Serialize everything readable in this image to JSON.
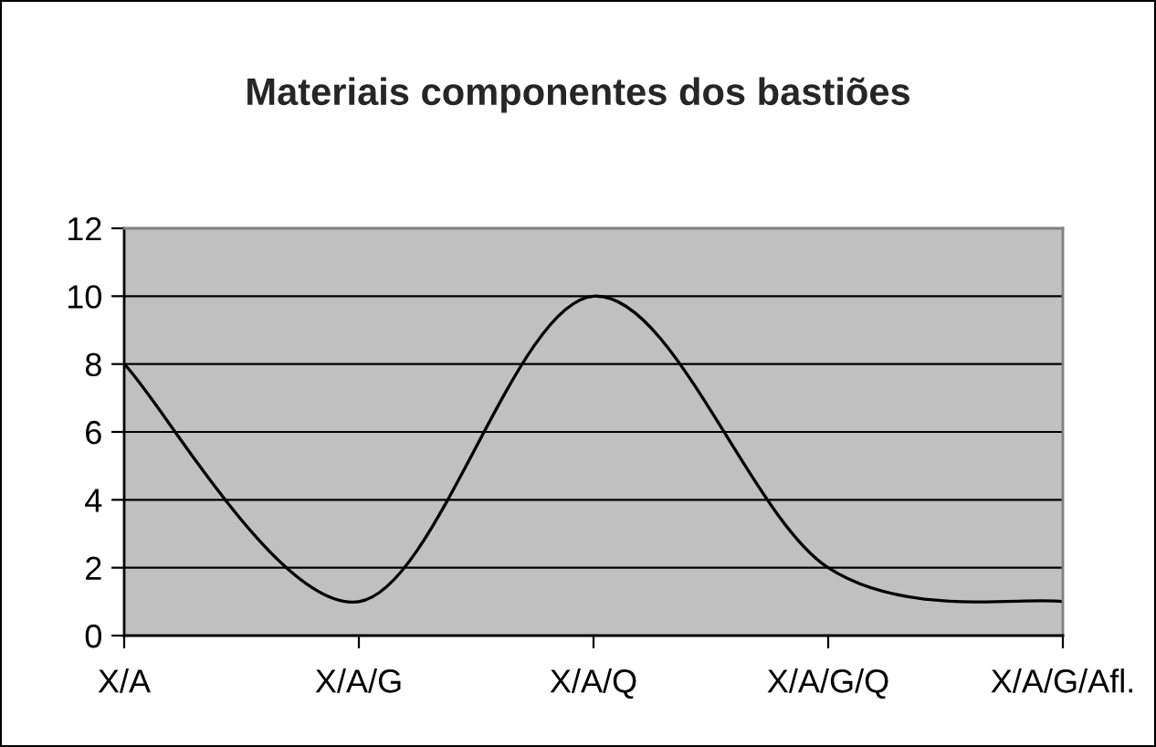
{
  "chart_data": {
    "type": "line",
    "title": "Materiais componentes dos bastiões",
    "categories": [
      "X/A",
      "X/A/G",
      "X/A/Q",
      "X/A/G/Q",
      "X/A/G/Afl."
    ],
    "series": [
      {
        "color": "#000000",
        "values": [
          8,
          1,
          10,
          2,
          1
        ]
      }
    ],
    "ylim": [
      0,
      12
    ],
    "yticks": [
      0,
      2,
      4,
      6,
      8,
      10,
      12
    ],
    "grid": "y",
    "marker": "none",
    "line_style": "solid"
  }
}
